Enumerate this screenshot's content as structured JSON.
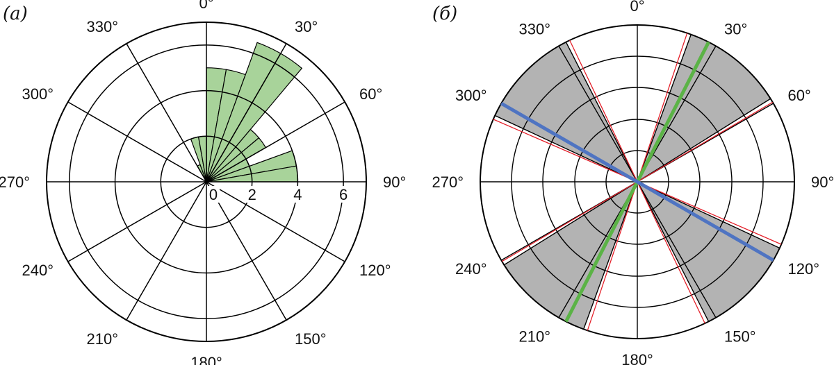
{
  "colors": {
    "rose_fill": "#a8d39a",
    "sector_fill": "#b3b3b3",
    "red_boundary": "#e4202a",
    "green_line": "#5bb346",
    "blue_line": "#4f74c2",
    "axis": "#000000"
  },
  "chart_data": [
    {
      "panel": "(а)",
      "type": "polar-rose",
      "direction_labels": [
        "0°",
        "30°",
        "60°",
        "90°",
        "120°",
        "150°",
        "180°",
        "210°",
        "240°",
        "270°",
        "300°",
        "330°"
      ],
      "radial_ticks": [
        "0",
        "2",
        "4",
        "6"
      ],
      "rlim": [
        0,
        7
      ],
      "bin_width_deg": 10,
      "bins": [
        {
          "from": 0,
          "to": 10,
          "value": 5
        },
        {
          "from": 10,
          "to": 20,
          "value": 5
        },
        {
          "from": 20,
          "to": 30,
          "value": 6.5
        },
        {
          "from": 30,
          "to": 40,
          "value": 6.5
        },
        {
          "from": 40,
          "to": 50,
          "value": 3
        },
        {
          "from": 50,
          "to": 60,
          "value": 3
        },
        {
          "from": 60,
          "to": 70,
          "value": 2
        },
        {
          "from": 70,
          "to": 80,
          "value": 4
        },
        {
          "from": 80,
          "to": 90,
          "value": 4
        },
        {
          "from": 330,
          "to": 340,
          "value": 0.8
        },
        {
          "from": 340,
          "to": 350,
          "value": 2
        },
        {
          "from": 350,
          "to": 360,
          "value": 2
        }
      ]
    },
    {
      "panel": "(б)",
      "type": "polar-sectors",
      "direction_labels": [
        "0°",
        "30°",
        "60°",
        "90°",
        "120°",
        "150°",
        "180°",
        "210°",
        "240°",
        "270°",
        "300°",
        "330°"
      ],
      "shaded_sectors_deg": [
        [
          20,
          58
        ],
        [
          200,
          238
        ],
        [
          295,
          333
        ],
        [
          115,
          153
        ]
      ],
      "green_line_deg": 27,
      "blue_line_deg": 300
    }
  ]
}
